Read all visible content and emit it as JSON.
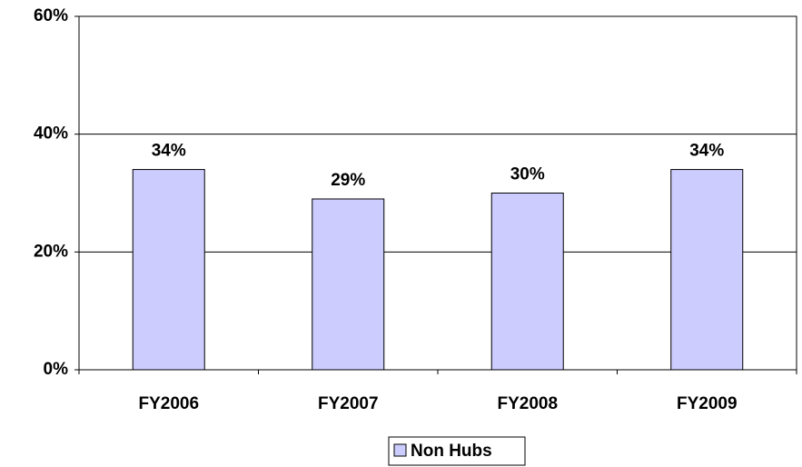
{
  "chart_data": {
    "type": "bar",
    "categories": [
      "FY2006",
      "FY2007",
      "FY2008",
      "FY2009"
    ],
    "series": [
      {
        "name": "Non Hubs",
        "color": "#ccccff",
        "values": [
          34,
          29,
          30,
          34
        ],
        "value_labels": [
          "34%",
          "29%",
          "30%",
          "34%"
        ]
      }
    ],
    "ylim": [
      0,
      60
    ],
    "yticks": [
      {
        "value": 0,
        "label": "0%"
      },
      {
        "value": 20,
        "label": "20%"
      },
      {
        "value": 40,
        "label": "40%"
      },
      {
        "value": 60,
        "label": "60%"
      }
    ],
    "grid": true,
    "legend": "bottom"
  }
}
